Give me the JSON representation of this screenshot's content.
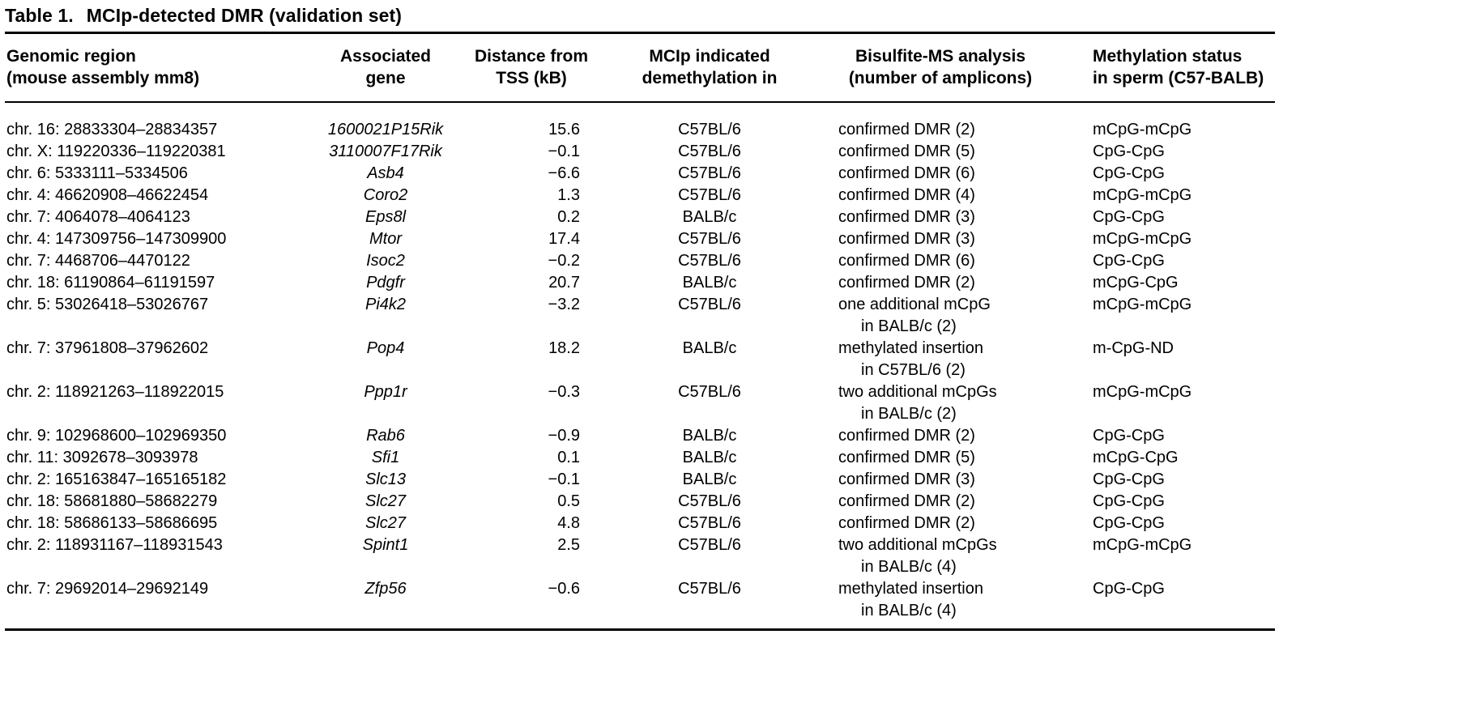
{
  "title": {
    "label": "Table 1.",
    "text": "MCIp-detected DMR (validation set)"
  },
  "table": {
    "headers": [
      {
        "line1": "Genomic region",
        "line2": "(mouse assembly mm8)"
      },
      {
        "line1": "Associated",
        "line2": "gene"
      },
      {
        "line1": "Distance from",
        "line2": "TSS (kB)"
      },
      {
        "line1": "MCIp indicated",
        "line2": "demethylation in"
      },
      {
        "line1": "Bisulfite-MS analysis",
        "line2": "(number of amplicons)"
      },
      {
        "line1": "Methylation status",
        "line2": "in sperm (C57-BALB)"
      }
    ],
    "rows": [
      {
        "region": "chr. 16: 28833304–28834357",
        "gene": "1600021P15Rik",
        "distance": "15.6",
        "demethylation": "C57BL/6",
        "bisulfite": [
          "confirmed DMR (2)"
        ],
        "status": "mCpG-mCpG"
      },
      {
        "region": "chr. X: 119220336–119220381",
        "gene": "3110007F17Rik",
        "distance": "−0.1",
        "demethylation": "C57BL/6",
        "bisulfite": [
          "confirmed DMR (5)"
        ],
        "status": "CpG-CpG"
      },
      {
        "region": "chr. 6: 5333111–5334506",
        "gene": "Asb4",
        "distance": "−6.6",
        "demethylation": "C57BL/6",
        "bisulfite": [
          "confirmed DMR (6)"
        ],
        "status": "CpG-CpG"
      },
      {
        "region": "chr. 4: 46620908–46622454",
        "gene": "Coro2",
        "distance": "1.3",
        "demethylation": "C57BL/6",
        "bisulfite": [
          "confirmed DMR (4)"
        ],
        "status": "mCpG-mCpG"
      },
      {
        "region": "chr. 7: 4064078–4064123",
        "gene": "Eps8l",
        "distance": "0.2",
        "demethylation": "BALB/c",
        "bisulfite": [
          "confirmed DMR (3)"
        ],
        "status": "CpG-CpG"
      },
      {
        "region": "chr. 4: 147309756–147309900",
        "gene": "Mtor",
        "distance": "17.4",
        "demethylation": "C57BL/6",
        "bisulfite": [
          "confirmed DMR (3)"
        ],
        "status": "mCpG-mCpG"
      },
      {
        "region": "chr. 7: 4468706–4470122",
        "gene": "Isoc2",
        "distance": "−0.2",
        "demethylation": "C57BL/6",
        "bisulfite": [
          "confirmed DMR (6)"
        ],
        "status": "CpG-CpG"
      },
      {
        "region": "chr. 18: 61190864–61191597",
        "gene": "Pdgfr",
        "distance": "20.7",
        "demethylation": "BALB/c",
        "bisulfite": [
          "confirmed DMR (2)"
        ],
        "status": "mCpG-CpG"
      },
      {
        "region": "chr. 5: 53026418–53026767",
        "gene": "Pi4k2",
        "distance": "−3.2",
        "demethylation": "C57BL/6",
        "bisulfite": [
          "one additional mCpG",
          "in BALB/c (2)"
        ],
        "status": "mCpG-mCpG"
      },
      {
        "region": "chr. 7: 37961808–37962602",
        "gene": "Pop4",
        "distance": "18.2",
        "demethylation": "BALB/c",
        "bisulfite": [
          "methylated insertion",
          "in C57BL/6 (2)"
        ],
        "status": "m-CpG-ND"
      },
      {
        "region": "chr. 2: 118921263–118922015",
        "gene": "Ppp1r",
        "distance": "−0.3",
        "demethylation": "C57BL/6",
        "bisulfite": [
          "two additional mCpGs",
          "in BALB/c (2)"
        ],
        "status": "mCpG-mCpG"
      },
      {
        "region": "chr. 9: 102968600–102969350",
        "gene": "Rab6",
        "distance": "−0.9",
        "demethylation": "BALB/c",
        "bisulfite": [
          "confirmed DMR (2)"
        ],
        "status": "CpG-CpG"
      },
      {
        "region": "chr. 11: 3092678–3093978",
        "gene": "Sfi1",
        "distance": "0.1",
        "demethylation": "BALB/c",
        "bisulfite": [
          "confirmed DMR (5)"
        ],
        "status": "mCpG-CpG"
      },
      {
        "region": "chr. 2: 165163847–165165182",
        "gene": "Slc13",
        "distance": "−0.1",
        "demethylation": "BALB/c",
        "bisulfite": [
          "confirmed DMR (3)"
        ],
        "status": "CpG-CpG"
      },
      {
        "region": "chr. 18: 58681880–58682279",
        "gene": "Slc27",
        "distance": "0.5",
        "demethylation": "C57BL/6",
        "bisulfite": [
          "confirmed DMR (2)"
        ],
        "status": "CpG-CpG"
      },
      {
        "region": "chr. 18: 58686133–58686695",
        "gene": "Slc27",
        "distance": "4.8",
        "demethylation": "C57BL/6",
        "bisulfite": [
          "confirmed DMR (2)"
        ],
        "status": "CpG-CpG"
      },
      {
        "region": "chr. 2: 118931167–118931543",
        "gene": "Spint1",
        "distance": "2.5",
        "demethylation": "C57BL/6",
        "bisulfite": [
          "two additional mCpGs",
          "in BALB/c (4)"
        ],
        "status": "mCpG-mCpG"
      },
      {
        "region": "chr. 7: 29692014–29692149",
        "gene": "Zfp56",
        "distance": "−0.6",
        "demethylation": "C57BL/6",
        "bisulfite": [
          "methylated insertion",
          "in BALB/c (4)"
        ],
        "status": "CpG-CpG"
      }
    ]
  }
}
